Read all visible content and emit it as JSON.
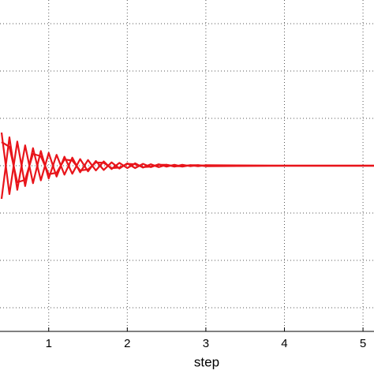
{
  "chart_data": {
    "type": "line",
    "x_label": "step",
    "x": [
      0.4,
      0.5,
      0.6,
      0.7,
      0.8,
      0.9,
      1.0,
      1.1,
      1.2,
      1.3,
      1.4,
      1.5,
      1.6,
      1.7,
      1.8,
      1.9,
      2.0,
      2.1,
      2.2,
      2.3,
      2.4,
      2.5,
      2.6,
      2.7,
      2.8,
      2.9,
      3.0,
      4.0,
      5.14
    ],
    "series": [
      {
        "color": "#e8141a",
        "values": [
          0.7,
          -0.6,
          0.51,
          -0.43,
          0.37,
          -0.31,
          0.27,
          -0.23,
          0.19,
          -0.17,
          0.14,
          -0.12,
          0.1,
          -0.09,
          0.07,
          -0.06,
          0.05,
          -0.05,
          0.04,
          -0.03,
          0.03,
          -0.02,
          0.02,
          -0.02,
          0.01,
          -0.01,
          0.01,
          0,
          0
        ]
      },
      {
        "color": "#e8141a",
        "values": [
          -0.7,
          0.6,
          -0.51,
          0.43,
          -0.37,
          0.31,
          -0.27,
          0.23,
          -0.19,
          0.17,
          -0.14,
          0.12,
          -0.1,
          0.09,
          -0.07,
          0.06,
          -0.05,
          0.05,
          -0.04,
          0.03,
          -0.03,
          0.02,
          -0.02,
          0.02,
          -0.01,
          0.01,
          -0.01,
          0,
          0
        ]
      },
      {
        "color": "#e8141a",
        "values": [
          0.5,
          0.4,
          -0.35,
          -0.3,
          0.25,
          0.2,
          -0.18,
          -0.15,
          0.13,
          0.11,
          -0.1,
          -0.08,
          0.07,
          0.06,
          -0.05,
          -0.04,
          0.04,
          0.03,
          -0.03,
          -0.02,
          0.02,
          0.02,
          -0.01,
          -0.01,
          0.01,
          0.01,
          0,
          0,
          0
        ]
      }
    ],
    "xlim": [
      0.38,
      5.14
    ],
    "xticks": [
      1,
      2,
      3,
      4,
      5
    ],
    "ylim": [
      -3.5,
      3.5
    ],
    "yticks": [
      -3,
      -2,
      -1,
      0,
      1,
      2,
      3
    ],
    "ytick_labels": false,
    "grid": true
  }
}
